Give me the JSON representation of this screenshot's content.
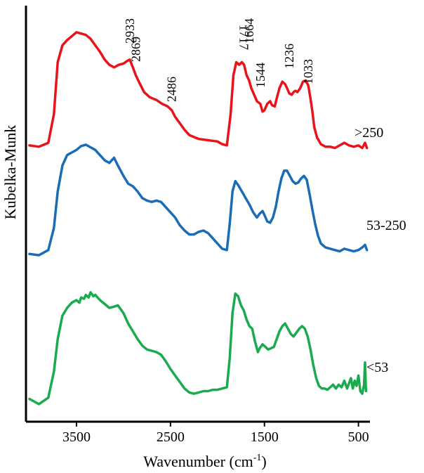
{
  "chart_data": {
    "type": "line",
    "title": "",
    "xlabel": "Wavenumber (cm",
    "xlabel_sup": "-1",
    "xlabel_suffix": ")",
    "ylabel": "Kubelka-Munk",
    "xlim": [
      4000,
      400
    ],
    "x_reversed": true,
    "x_ticks": [
      3500,
      2500,
      1500,
      500
    ],
    "x_tick_labels": [
      "3500",
      "2500",
      "1500",
      "500"
    ],
    "y_ticks_shown": false,
    "grid": false,
    "series": [
      {
        "name": ">250",
        "color": "#e8141c",
        "offset": 2.0,
        "points": [
          [
            4000,
            0.06
          ],
          [
            3900,
            0.05
          ],
          [
            3800,
            0.08
          ],
          [
            3740,
            0.3
          ],
          [
            3700,
            0.7
          ],
          [
            3650,
            0.83
          ],
          [
            3600,
            0.87
          ],
          [
            3550,
            0.9
          ],
          [
            3500,
            0.93
          ],
          [
            3450,
            0.92
          ],
          [
            3400,
            0.91
          ],
          [
            3350,
            0.88
          ],
          [
            3300,
            0.83
          ],
          [
            3250,
            0.78
          ],
          [
            3200,
            0.72
          ],
          [
            3150,
            0.68
          ],
          [
            3100,
            0.66
          ],
          [
            3050,
            0.68
          ],
          [
            3000,
            0.69
          ],
          [
            2960,
            0.71
          ],
          [
            2933,
            0.72
          ],
          [
            2900,
            0.66
          ],
          [
            2869,
            0.6
          ],
          [
            2830,
            0.54
          ],
          [
            2780,
            0.47
          ],
          [
            2720,
            0.43
          ],
          [
            2650,
            0.41
          ],
          [
            2590,
            0.38
          ],
          [
            2530,
            0.36
          ],
          [
            2486,
            0.33
          ],
          [
            2450,
            0.28
          ],
          [
            2400,
            0.23
          ],
          [
            2350,
            0.18
          ],
          [
            2300,
            0.14
          ],
          [
            2200,
            0.11
          ],
          [
            2100,
            0.1
          ],
          [
            2000,
            0.09
          ],
          [
            1950,
            0.07
          ],
          [
            1900,
            0.06
          ],
          [
            1860,
            0.3
          ],
          [
            1830,
            0.6
          ],
          [
            1800,
            0.7
          ],
          [
            1770,
            0.68
          ],
          [
            1740,
            0.7
          ],
          [
            1717,
            0.68
          ],
          [
            1690,
            0.6
          ],
          [
            1664,
            0.56
          ],
          [
            1640,
            0.5
          ],
          [
            1610,
            0.45
          ],
          [
            1580,
            0.4
          ],
          [
            1544,
            0.38
          ],
          [
            1520,
            0.32
          ],
          [
            1500,
            0.33
          ],
          [
            1470,
            0.38
          ],
          [
            1440,
            0.4
          ],
          [
            1420,
            0.37
          ],
          [
            1390,
            0.36
          ],
          [
            1370,
            0.42
          ],
          [
            1340,
            0.5
          ],
          [
            1310,
            0.55
          ],
          [
            1280,
            0.53
          ],
          [
            1260,
            0.5
          ],
          [
            1236,
            0.46
          ],
          [
            1210,
            0.45
          ],
          [
            1190,
            0.47
          ],
          [
            1170,
            0.48
          ],
          [
            1150,
            0.47
          ],
          [
            1120,
            0.5
          ],
          [
            1090,
            0.55
          ],
          [
            1060,
            0.56
          ],
          [
            1033,
            0.52
          ],
          [
            1010,
            0.42
          ],
          [
            990,
            0.32
          ],
          [
            970,
            0.2
          ],
          [
            940,
            0.12
          ],
          [
            900,
            0.07
          ],
          [
            850,
            0.05
          ],
          [
            800,
            0.05
          ],
          [
            750,
            0.04
          ],
          [
            700,
            0.06
          ],
          [
            650,
            0.08
          ],
          [
            600,
            0.06
          ],
          [
            550,
            0.05
          ],
          [
            500,
            0.06
          ],
          [
            460,
            0.04
          ],
          [
            430,
            0.08
          ],
          [
            410,
            0.04
          ]
        ]
      },
      {
        "name": "53-250",
        "color": "#1a6db5",
        "offset": 1.0,
        "points": [
          [
            4000,
            0.02
          ],
          [
            3900,
            0.01
          ],
          [
            3800,
            0.05
          ],
          [
            3740,
            0.22
          ],
          [
            3700,
            0.5
          ],
          [
            3650,
            0.7
          ],
          [
            3600,
            0.78
          ],
          [
            3550,
            0.8
          ],
          [
            3500,
            0.82
          ],
          [
            3450,
            0.85
          ],
          [
            3400,
            0.86
          ],
          [
            3350,
            0.84
          ],
          [
            3300,
            0.82
          ],
          [
            3250,
            0.78
          ],
          [
            3200,
            0.74
          ],
          [
            3150,
            0.72
          ],
          [
            3100,
            0.76
          ],
          [
            3060,
            0.7
          ],
          [
            3000,
            0.62
          ],
          [
            2950,
            0.56
          ],
          [
            2900,
            0.54
          ],
          [
            2850,
            0.5
          ],
          [
            2800,
            0.45
          ],
          [
            2750,
            0.43
          ],
          [
            2700,
            0.42
          ],
          [
            2650,
            0.43
          ],
          [
            2600,
            0.42
          ],
          [
            2550,
            0.38
          ],
          [
            2500,
            0.34
          ],
          [
            2450,
            0.3
          ],
          [
            2400,
            0.24
          ],
          [
            2350,
            0.2
          ],
          [
            2300,
            0.17
          ],
          [
            2250,
            0.17
          ],
          [
            2200,
            0.19
          ],
          [
            2150,
            0.2
          ],
          [
            2100,
            0.18
          ],
          [
            2050,
            0.14
          ],
          [
            2000,
            0.1
          ],
          [
            1950,
            0.06
          ],
          [
            1900,
            0.05
          ],
          [
            1870,
            0.25
          ],
          [
            1840,
            0.5
          ],
          [
            1810,
            0.58
          ],
          [
            1780,
            0.55
          ],
          [
            1740,
            0.5
          ],
          [
            1700,
            0.45
          ],
          [
            1660,
            0.4
          ],
          [
            1620,
            0.34
          ],
          [
            1580,
            0.3
          ],
          [
            1550,
            0.33
          ],
          [
            1520,
            0.35
          ],
          [
            1500,
            0.32
          ],
          [
            1470,
            0.27
          ],
          [
            1440,
            0.26
          ],
          [
            1410,
            0.3
          ],
          [
            1380,
            0.38
          ],
          [
            1350,
            0.5
          ],
          [
            1320,
            0.6
          ],
          [
            1290,
            0.66
          ],
          [
            1260,
            0.66
          ],
          [
            1230,
            0.62
          ],
          [
            1200,
            0.58
          ],
          [
            1170,
            0.56
          ],
          [
            1140,
            0.57
          ],
          [
            1110,
            0.6
          ],
          [
            1080,
            0.62
          ],
          [
            1050,
            0.59
          ],
          [
            1020,
            0.48
          ],
          [
            990,
            0.36
          ],
          [
            960,
            0.25
          ],
          [
            930,
            0.16
          ],
          [
            900,
            0.1
          ],
          [
            850,
            0.07
          ],
          [
            800,
            0.06
          ],
          [
            750,
            0.05
          ],
          [
            700,
            0.04
          ],
          [
            650,
            0.06
          ],
          [
            600,
            0.05
          ],
          [
            550,
            0.04
          ],
          [
            500,
            0.05
          ],
          [
            460,
            0.07
          ],
          [
            430,
            0.09
          ],
          [
            410,
            0.05
          ]
        ]
      },
      {
        "name": "<53",
        "color": "#1aab4f",
        "offset": 0.0,
        "points": [
          [
            4000,
            0.04
          ],
          [
            3900,
            0.0
          ],
          [
            3800,
            0.05
          ],
          [
            3740,
            0.25
          ],
          [
            3700,
            0.5
          ],
          [
            3650,
            0.68
          ],
          [
            3600,
            0.74
          ],
          [
            3550,
            0.78
          ],
          [
            3500,
            0.8
          ],
          [
            3470,
            0.78
          ],
          [
            3450,
            0.82
          ],
          [
            3420,
            0.81
          ],
          [
            3400,
            0.84
          ],
          [
            3370,
            0.82
          ],
          [
            3350,
            0.86
          ],
          [
            3320,
            0.83
          ],
          [
            3300,
            0.84
          ],
          [
            3250,
            0.8
          ],
          [
            3200,
            0.77
          ],
          [
            3150,
            0.74
          ],
          [
            3100,
            0.75
          ],
          [
            3060,
            0.76
          ],
          [
            3000,
            0.7
          ],
          [
            2950,
            0.62
          ],
          [
            2900,
            0.56
          ],
          [
            2850,
            0.5
          ],
          [
            2800,
            0.45
          ],
          [
            2750,
            0.42
          ],
          [
            2700,
            0.41
          ],
          [
            2650,
            0.4
          ],
          [
            2600,
            0.38
          ],
          [
            2550,
            0.33
          ],
          [
            2500,
            0.27
          ],
          [
            2450,
            0.22
          ],
          [
            2400,
            0.17
          ],
          [
            2350,
            0.12
          ],
          [
            2300,
            0.09
          ],
          [
            2250,
            0.08
          ],
          [
            2200,
            0.09
          ],
          [
            2150,
            0.1
          ],
          [
            2100,
            0.1
          ],
          [
            2050,
            0.11
          ],
          [
            2000,
            0.11
          ],
          [
            1950,
            0.12
          ],
          [
            1900,
            0.13
          ],
          [
            1870,
            0.35
          ],
          [
            1840,
            0.7
          ],
          [
            1810,
            0.85
          ],
          [
            1780,
            0.83
          ],
          [
            1750,
            0.76
          ],
          [
            1720,
            0.72
          ],
          [
            1690,
            0.65
          ],
          [
            1660,
            0.6
          ],
          [
            1630,
            0.58
          ],
          [
            1600,
            0.48
          ],
          [
            1570,
            0.4
          ],
          [
            1550,
            0.43
          ],
          [
            1520,
            0.46
          ],
          [
            1490,
            0.44
          ],
          [
            1460,
            0.42
          ],
          [
            1430,
            0.43
          ],
          [
            1400,
            0.44
          ],
          [
            1370,
            0.5
          ],
          [
            1340,
            0.56
          ],
          [
            1310,
            0.6
          ],
          [
            1280,
            0.62
          ],
          [
            1250,
            0.58
          ],
          [
            1220,
            0.54
          ],
          [
            1190,
            0.52
          ],
          [
            1160,
            0.55
          ],
          [
            1130,
            0.58
          ],
          [
            1100,
            0.6
          ],
          [
            1070,
            0.58
          ],
          [
            1040,
            0.52
          ],
          [
            1010,
            0.42
          ],
          [
            980,
            0.3
          ],
          [
            950,
            0.2
          ],
          [
            920,
            0.14
          ],
          [
            890,
            0.12
          ],
          [
            860,
            0.12
          ],
          [
            830,
            0.11
          ],
          [
            800,
            0.13
          ],
          [
            770,
            0.15
          ],
          [
            740,
            0.12
          ],
          [
            710,
            0.15
          ],
          [
            680,
            0.13
          ],
          [
            650,
            0.18
          ],
          [
            620,
            0.12
          ],
          [
            600,
            0.16
          ],
          [
            580,
            0.2
          ],
          [
            560,
            0.12
          ],
          [
            540,
            0.18
          ],
          [
            520,
            0.14
          ],
          [
            500,
            0.22
          ],
          [
            480,
            0.1
          ],
          [
            460,
            0.08
          ],
          [
            440,
            0.15
          ],
          [
            430,
            0.32
          ],
          [
            420,
            0.1
          ]
        ]
      }
    ],
    "annotations": [
      {
        "text": "2933",
        "x": 2933,
        "series": 0,
        "rotation": -90
      },
      {
        "text": "2869",
        "x": 2869,
        "series": 0,
        "rotation": -90
      },
      {
        "text": "2486",
        "x": 2486,
        "series": 0,
        "rotation": -90
      },
      {
        "text": "1717",
        "x": 1717,
        "series": 0,
        "rotation": 90
      },
      {
        "text": "1664",
        "x": 1664,
        "series": 0,
        "rotation": -90
      },
      {
        "text": "1544",
        "x": 1544,
        "series": 0,
        "rotation": -90
      },
      {
        "text": "1236",
        "x": 1236,
        "series": 0,
        "rotation": -90
      },
      {
        "text": "1033",
        "x": 1033,
        "series": 0,
        "rotation": -90
      }
    ]
  }
}
